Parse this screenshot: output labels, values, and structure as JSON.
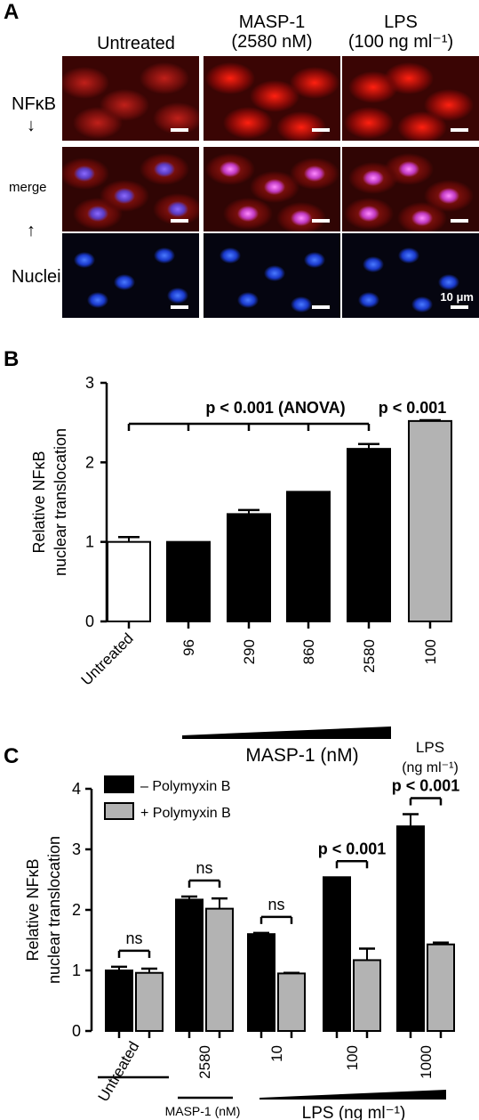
{
  "panelA": {
    "letter": "A",
    "columns": [
      {
        "line1": "Untreated",
        "line2": ""
      },
      {
        "line1": "MASP-1",
        "line2": "(2580 nM)"
      },
      {
        "line1": "LPS",
        "line2": "(100 ng ml⁻¹)"
      }
    ],
    "rows": [
      "NFκB",
      "merge",
      "Nuclei"
    ],
    "scale_label": "10 μm"
  },
  "chart_data": [
    {
      "panel": "B",
      "type": "bar",
      "ylabel": "Relative NFκB nuclear translocation",
      "ylim": [
        0,
        3
      ],
      "yticks": [
        "0",
        "1",
        "2",
        "3"
      ],
      "categories": [
        "Untreated",
        "96",
        "290",
        "860",
        "2580",
        "100"
      ],
      "values": [
        1.0,
        1.0,
        1.35,
        1.63,
        2.17,
        2.52
      ],
      "errors": [
        0.06,
        0.0,
        0.05,
        0.0,
        0.06,
        0.01
      ],
      "bar_colors": [
        "#ffffff",
        "#000000",
        "#000000",
        "#000000",
        "#000000",
        "#b3b3b3"
      ],
      "group_labels": {
        "masp": "MASP-1 (nM)",
        "lps_line1": "LPS",
        "lps_line2": "(ng ml⁻¹)"
      },
      "annotations": {
        "anova": "p < 0.001 (ANOVA)",
        "lps": "p < 0.001"
      }
    },
    {
      "panel": "C",
      "type": "bar",
      "ylabel": "Relative NFκB nuclear translocation",
      "ylim": [
        0,
        4
      ],
      "yticks": [
        "0",
        "1",
        "2",
        "3",
        "4"
      ],
      "categories": [
        "Untreated",
        "2580",
        "10",
        "100",
        "1000"
      ],
      "series": [
        {
          "name": "– Polymyxin B",
          "color": "#000000",
          "values": [
            1.0,
            2.17,
            1.6,
            2.54,
            3.38
          ],
          "errors": [
            0.06,
            0.05,
            0.02,
            0.0,
            0.2
          ]
        },
        {
          "name": "+ Polymyxin B",
          "color": "#b3b3b3",
          "values": [
            0.96,
            2.02,
            0.95,
            1.17,
            1.43
          ],
          "errors": [
            0.07,
            0.17,
            0.01,
            0.19,
            0.03
          ]
        }
      ],
      "comparisons": [
        "ns",
        "ns",
        "ns",
        "p < 0.001",
        "p < 0.001"
      ],
      "group_labels": {
        "masp": "MASP-1 (nM)",
        "lps": "LPS (ng ml⁻¹)"
      },
      "legend_position": "top-left"
    }
  ]
}
